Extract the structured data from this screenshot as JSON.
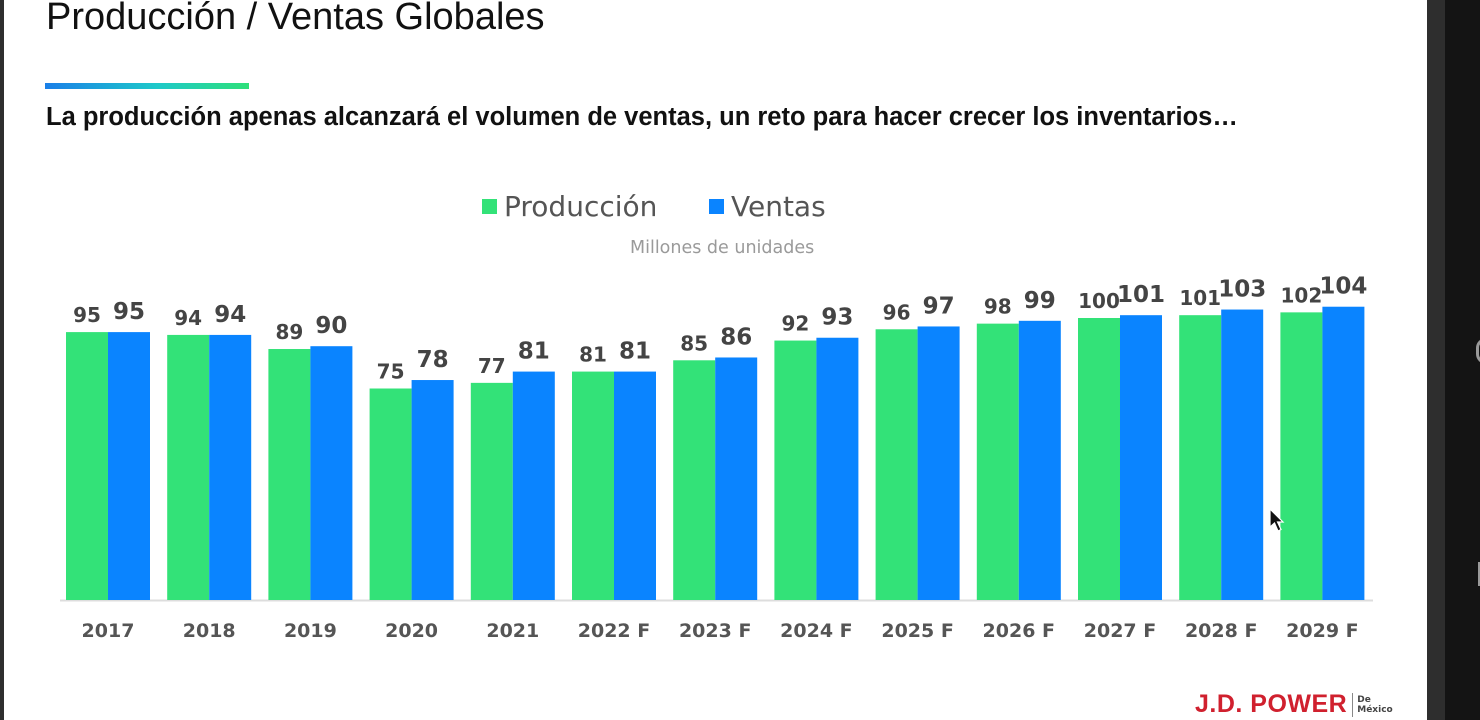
{
  "slide": {
    "title": "Producción / Ventas Globales",
    "subtitle": "La producción apenas alcanzará el volumen de ventas, un reto para hacer crecer los inventarios…",
    "accent_colors": [
      "#1a7fe8",
      "#2ee07a"
    ],
    "logo": {
      "main": "J.D. POWER",
      "sub_line1": "De",
      "sub_line2": "México",
      "color": "#d0202e"
    }
  },
  "chart_data": {
    "type": "bar",
    "title": "",
    "subtitle": "Millones de unidades",
    "xlabel": "",
    "ylabel": "",
    "ylim": [
      0,
      104
    ],
    "grid": false,
    "legend": "top-center",
    "categories": [
      "2017",
      "2018",
      "2019",
      "2020",
      "2021",
      "2022 F",
      "2023 F",
      "2024 F",
      "2025 F",
      "2026 F",
      "2027 F",
      "2028 F",
      "2029 F"
    ],
    "series": [
      {
        "name": "Producción",
        "color": "#33e278",
        "values": [
          95,
          94,
          89,
          75,
          77,
          81,
          85,
          92,
          96,
          98,
          100,
          101,
          102
        ]
      },
      {
        "name": "Ventas",
        "color": "#0a84ff",
        "values": [
          95,
          94,
          90,
          78,
          81,
          81,
          86,
          93,
          97,
          99,
          101,
          103,
          104
        ]
      }
    ]
  }
}
